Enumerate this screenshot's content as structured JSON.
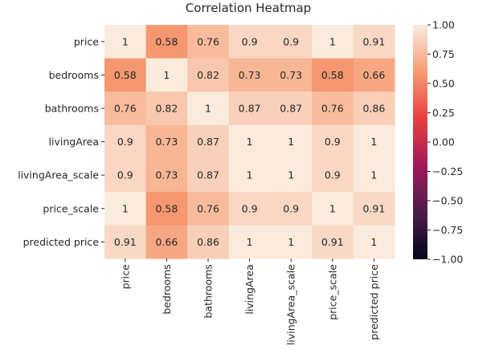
{
  "chart_data": {
    "type": "heatmap",
    "title": "Correlation Heatmap",
    "xlabel": "",
    "ylabel": "",
    "rows": [
      "price",
      "bedrooms",
      "bathrooms",
      "livingArea",
      "livingArea_scale",
      "price_scale",
      "predicted price"
    ],
    "columns": [
      "price",
      "bedrooms",
      "bathrooms",
      "livingArea",
      "livingArea_scale",
      "price_scale",
      "predicted price"
    ],
    "values": [
      [
        1,
        0.58,
        0.76,
        0.9,
        0.9,
        1,
        0.91
      ],
      [
        0.58,
        1,
        0.82,
        0.73,
        0.73,
        0.58,
        0.66
      ],
      [
        0.76,
        0.82,
        1,
        0.87,
        0.87,
        0.76,
        0.86
      ],
      [
        0.9,
        0.73,
        0.87,
        1,
        1,
        0.9,
        1
      ],
      [
        0.9,
        0.73,
        0.87,
        1,
        1,
        0.9,
        1
      ],
      [
        1,
        0.58,
        0.76,
        0.9,
        0.9,
        1,
        0.91
      ],
      [
        0.91,
        0.66,
        0.86,
        1,
        1,
        0.91,
        1
      ]
    ],
    "annotations": true,
    "colorbar": {
      "min": -1.0,
      "max": 1.0,
      "ticks": [
        1.0,
        0.75,
        0.5,
        0.25,
        0.0,
        -0.25,
        -0.5,
        -0.75,
        -1.0
      ],
      "tick_labels": [
        "1.00",
        "0.75",
        "0.50",
        "0.25",
        "0.00",
        "−0.25",
        "−0.50",
        "−0.75",
        "−1.00"
      ],
      "colormap": "rocket",
      "colormap_stops": [
        "#03051a",
        "#4c1d4b",
        "#a11a5b",
        "#e83f3f",
        "#f69c73",
        "#faebdd"
      ]
    }
  }
}
